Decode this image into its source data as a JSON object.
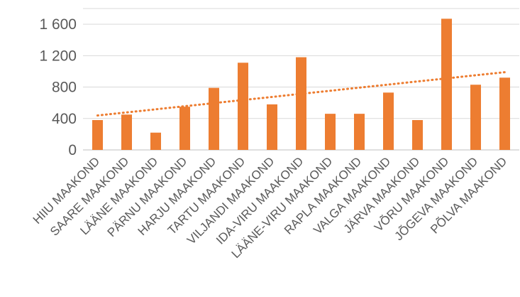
{
  "chart_data": {
    "type": "bar",
    "title": "",
    "xlabel": "",
    "ylabel": "",
    "ylim": [
      0,
      1800
    ],
    "yticks": [
      0,
      400,
      800,
      1200,
      1600
    ],
    "ytick_labels": [
      "0",
      "400",
      "800",
      "1 200",
      "1 600"
    ],
    "grid": true,
    "legend": "none",
    "categories": [
      "HIIU MAAKOND",
      "SAARE MAAKOND",
      "LÄÄNE MAAKOND",
      "PÄRNU MAAKOND",
      "HARJU MAAKOND",
      "TARTU MAAKOND",
      "VILJANDI MAAKOND",
      "IDA-VIRU MAAKOND",
      "LÄÄNE-VIRU MAAKOND",
      "RAPLA MAAKOND",
      "VALGA MAAKOND",
      "JÄRVA MAAKOND",
      "VÕRU MAAKOND",
      "JÕGEVA MAAKOND",
      "PÕLVA MAAKOND"
    ],
    "values": [
      380,
      450,
      220,
      550,
      790,
      1110,
      580,
      1180,
      460,
      460,
      730,
      380,
      1670,
      830,
      920
    ],
    "trendline": {
      "type": "linear",
      "style": "dotted"
    },
    "colors": {
      "bar": "#ED7D31",
      "trend": "#ED7D31",
      "grid": "#D9D9D9",
      "text": "#595959"
    }
  }
}
